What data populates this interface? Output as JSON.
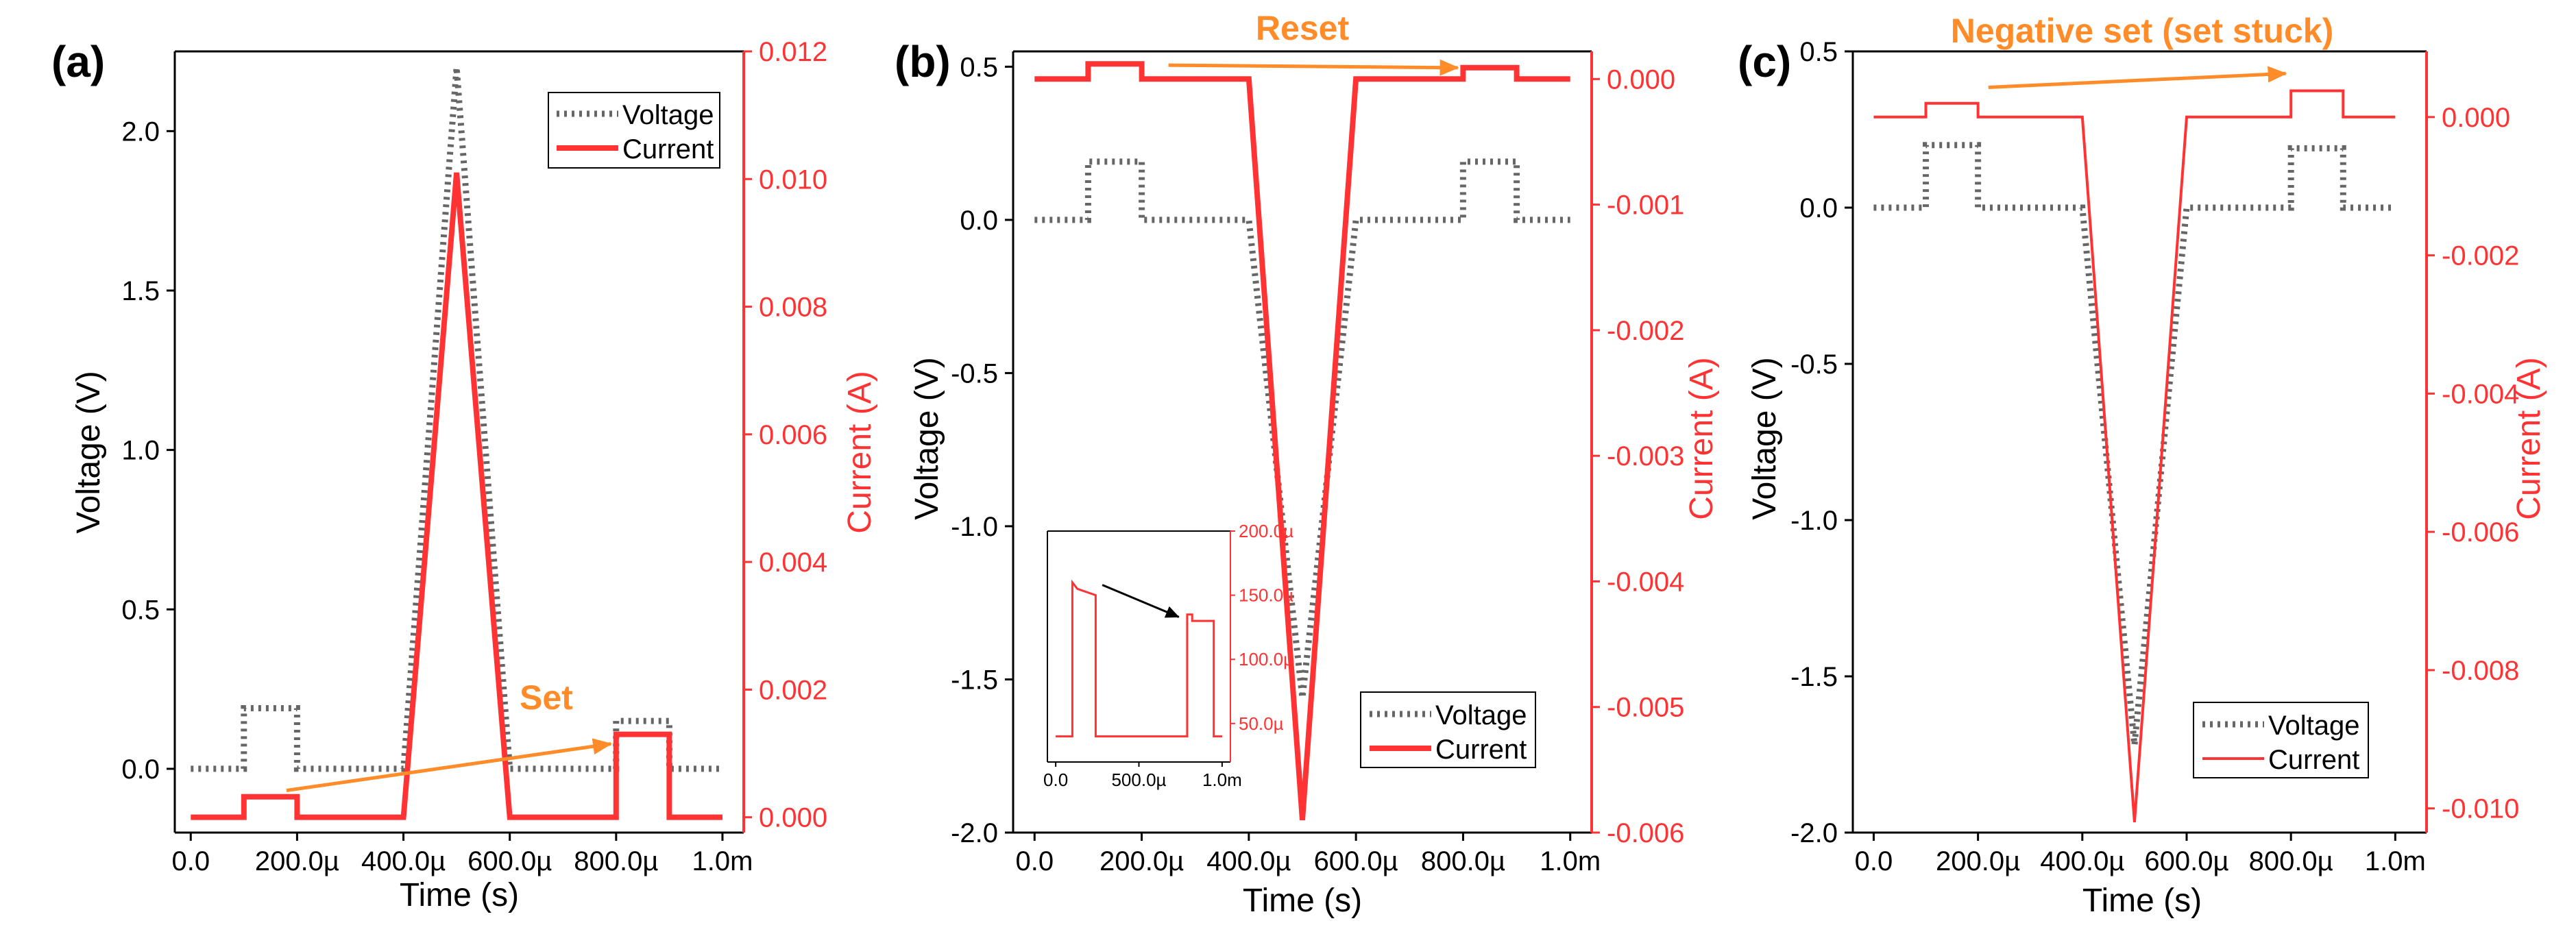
{
  "colors": {
    "voltage": "#666666",
    "current": "#ff3333",
    "arrow": "#ff8c28",
    "inset_arrow": "#000000",
    "frame": "#000000"
  },
  "panels": [
    {
      "label": "(a)",
      "annotation": "Set",
      "chart_data": {
        "type": "line",
        "xlabel": "Time (s)",
        "ylabel_left": "Voltage (V)",
        "ylabel_right": "Current (A)",
        "xlim": [
          -3e-05,
          0.00104
        ],
        "ylim_left": [
          -0.2,
          2.25
        ],
        "ylim_right": [
          -0.00024,
          0.012
        ],
        "x_ticks": [
          0,
          0.0002,
          0.0004,
          0.0006,
          0.0008,
          0.001
        ],
        "x_tick_labels": [
          "0.0",
          "200.0µ",
          "400.0µ",
          "600.0µ",
          "800.0µ",
          "1.0m"
        ],
        "y_left_ticks": [
          0,
          0.5,
          1,
          1.5,
          2
        ],
        "y_left_tick_labels": [
          "0.0",
          "0.5",
          "1.0",
          "1.5",
          "2.0"
        ],
        "y_right_ticks": [
          0,
          0.002,
          0.004,
          0.006,
          0.008,
          0.01,
          0.012
        ],
        "y_right_tick_labels": [
          "0.000",
          "0.002",
          "0.004",
          "0.006",
          "0.008",
          "0.010",
          "0.012"
        ],
        "legend": {
          "position": "top-right",
          "entries": [
            "Voltage",
            "Current"
          ]
        },
        "series": [
          {
            "name": "Voltage",
            "axis": "left",
            "style": "dotted",
            "x": [
              0,
              0.0001,
              0.0001,
              0.0002,
              0.0002,
              0.0004,
              0.0005,
              0.0006,
              0.0008,
              0.0008,
              0.0009,
              0.0009,
              0.001
            ],
            "y": [
              0,
              0,
              0.19,
              0.19,
              0,
              0,
              2.2,
              0,
              0,
              0.15,
              0.15,
              0,
              0
            ]
          },
          {
            "name": "Current",
            "axis": "right",
            "style": "solid",
            "x": [
              0,
              0.0001,
              0.0001,
              0.0002,
              0.0002,
              0.0004,
              0.0005,
              0.0006,
              0.0008,
              0.0008,
              0.0009,
              0.0009,
              0.001
            ],
            "y": [
              0,
              0,
              0.00032,
              0.00032,
              0,
              0,
              0.0101,
              0,
              0,
              0.0013,
              0.0013,
              0,
              0
            ]
          }
        ],
        "arrow": {
          "from": [
            0.00018,
            0.00042
          ],
          "to": [
            0.00079,
            0.00115
          ]
        }
      }
    },
    {
      "label": "(b)",
      "annotation": "Reset",
      "chart_data": {
        "type": "line",
        "xlabel": "Time (s)",
        "ylabel_left": "Voltage (V)",
        "ylabel_right": "Current (A)",
        "xlim": [
          -4e-05,
          0.00104
        ],
        "ylim_left": [
          -2.0,
          0.55
        ],
        "ylim_right": [
          -0.006,
          0.00022
        ],
        "x_ticks": [
          0,
          0.0002,
          0.0004,
          0.0006,
          0.0008,
          0.001
        ],
        "x_tick_labels": [
          "0.0",
          "200.0µ",
          "400.0µ",
          "600.0µ",
          "800.0µ",
          "1.0m"
        ],
        "y_left_ticks": [
          -2,
          -1.5,
          -1,
          -0.5,
          0,
          0.5
        ],
        "y_left_tick_labels": [
          "-2.0",
          "-1.5",
          "-1.0",
          "-0.5",
          "0.0",
          "0.5"
        ],
        "y_right_ticks": [
          -0.006,
          -0.005,
          -0.004,
          -0.003,
          -0.002,
          -0.001,
          0
        ],
        "y_right_tick_labels": [
          "-0.006",
          "-0.005",
          "-0.004",
          "-0.003",
          "-0.002",
          "-0.001",
          "0.000"
        ],
        "legend": {
          "position": "bottom-right",
          "entries": [
            "Voltage",
            "Current"
          ]
        },
        "series": [
          {
            "name": "Voltage",
            "axis": "left",
            "style": "dotted",
            "x": [
              0,
              0.0001,
              0.0001,
              0.0002,
              0.0002,
              0.0004,
              0.0005,
              0.0006,
              0.0008,
              0.0008,
              0.0009,
              0.0009,
              0.001
            ],
            "y": [
              0,
              0,
              0.19,
              0.19,
              0,
              0,
              -1.56,
              0,
              0,
              0.19,
              0.19,
              0,
              0
            ]
          },
          {
            "name": "Current",
            "axis": "right",
            "style": "solid",
            "x": [
              0,
              0.0001,
              0.0001,
              0.0002,
              0.0002,
              0.0004,
              0.0005,
              0.0006,
              0.0008,
              0.0008,
              0.0009,
              0.0009,
              0.001
            ],
            "y": [
              0,
              0,
              0.00012,
              0.00012,
              0,
              0,
              -0.0059,
              0,
              0,
              9e-05,
              9e-05,
              0,
              0
            ]
          }
        ],
        "arrow": {
          "from": [
            0.00025,
            0.00011
          ],
          "to": [
            0.00079,
            9e-05
          ]
        },
        "inset": {
          "x_ticks": [
            0,
            0.0005,
            0.001
          ],
          "x_tick_labels": [
            "0.0",
            "500.0µ",
            "1.0m"
          ],
          "y_right_ticks": [
            5e-05,
            0.0001,
            0.00015,
            0.0002
          ],
          "y_right_tick_labels": [
            "50.0µ",
            "100.0µ",
            "150.0µ",
            "200.0µ"
          ],
          "xlim": [
            -5e-05,
            0.00105
          ],
          "ylim": [
            2e-05,
            0.0002
          ],
          "series": {
            "x": [
              0,
              0.0001,
              0.0001,
              0.00013,
              0.00013,
              0.00024,
              0.00024,
              0.00079,
              0.00079,
              0.00082,
              0.00082,
              0.00095,
              0.00095,
              0.001
            ],
            "y": [
              4e-05,
              4e-05,
              0.00016,
              0.000155,
              0.000155,
              0.00015,
              4e-05,
              4e-05,
              0.000135,
              0.000135,
              0.00013,
              0.00013,
              4e-05,
              4e-05
            ]
          },
          "arrow": {
            "from": [
              0.00028,
              0.000158
            ],
            "to": [
              0.00074,
              0.000133
            ]
          }
        }
      }
    },
    {
      "label": "(c)",
      "annotation": "Negative set (set stuck)",
      "chart_data": {
        "type": "line",
        "xlabel": "Time (s)",
        "ylabel_left": "Voltage (V)",
        "ylabel_right": "Current (A)",
        "xlim": [
          -4e-05,
          0.00106
        ],
        "ylim_left": [
          -2.0,
          0.5
        ],
        "ylim_right": [
          -0.01035,
          0.00095
        ],
        "x_ticks": [
          0,
          0.0002,
          0.0004,
          0.0006,
          0.0008,
          0.001
        ],
        "x_tick_labels": [
          "0.0",
          "200.0µ",
          "400.0µ",
          "600.0µ",
          "800.0µ",
          "1.0m"
        ],
        "y_left_ticks": [
          -2,
          -1.5,
          -1,
          -0.5,
          0,
          0.5
        ],
        "y_left_tick_labels": [
          "-2.0",
          "-1.5",
          "-1.0",
          "-0.5",
          "0.0",
          "0.5"
        ],
        "y_right_ticks": [
          -0.01,
          -0.008,
          -0.006,
          -0.004,
          -0.002,
          0
        ],
        "y_right_tick_labels": [
          "-0.010",
          "-0.008",
          "-0.006",
          "-0.004",
          "-0.002",
          "0.000"
        ],
        "legend": {
          "position": "bottom-right",
          "entries": [
            "Voltage",
            "Current"
          ]
        },
        "series": [
          {
            "name": "Voltage",
            "axis": "left",
            "style": "dotted",
            "x": [
              0,
              0.0001,
              0.0001,
              0.0002,
              0.0002,
              0.0004,
              0.0005,
              0.0006,
              0.0008,
              0.0008,
              0.0009,
              0.0009,
              0.001
            ],
            "y": [
              0,
              0,
              0.2,
              0.2,
              0,
              0,
              -1.72,
              0,
              0,
              0.19,
              0.19,
              0,
              0
            ]
          },
          {
            "name": "Current",
            "axis": "right",
            "style": "solid",
            "x": [
              0,
              0.0001,
              0.0001,
              0.0002,
              0.0002,
              0.0004,
              0.0005,
              0.0006,
              0.0008,
              0.0008,
              0.0009,
              0.0009,
              0.001
            ],
            "y": [
              0,
              0,
              0.0002,
              0.0002,
              0,
              0,
              -0.0102,
              0,
              0,
              0.00038,
              0.00038,
              0,
              0
            ]
          }
        ],
        "arrow": {
          "from": [
            0.00022,
            0.00043
          ],
          "to": [
            0.00079,
            0.00063
          ]
        }
      }
    }
  ]
}
